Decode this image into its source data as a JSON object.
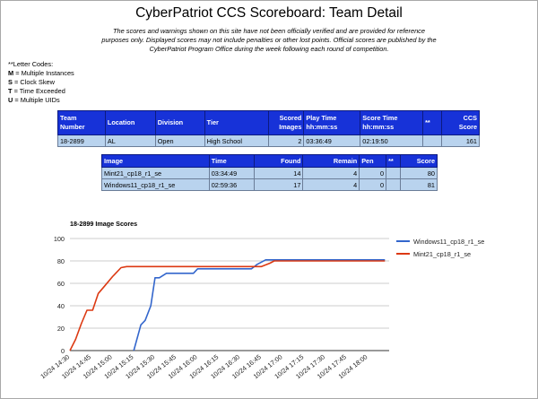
{
  "header": {
    "title": "CyberPatriot CCS Scoreboard: Team Detail",
    "disclaimer": "The scores and warnings shown on this site have not been officially verified and are provided for reference purposes only. Displayed scores may not include penalties or other lost points. Official scores are published by the CyberPatriot Program Office during the week following each round of competition."
  },
  "letter_codes": {
    "heading": "**Letter Codes:",
    "items": [
      {
        "code": "M",
        "label": " = Multiple Instances"
      },
      {
        "code": "S",
        "label": " = Clock Skew"
      },
      {
        "code": "T",
        "label": " = Time Exceeded"
      },
      {
        "code": "U",
        "label": " = Multiple UIDs"
      }
    ]
  },
  "team_table": {
    "headers": [
      "Team Number",
      "Location",
      "Division",
      "Tier",
      "Scored Images",
      "Play Time hh:mm:ss",
      "Score Time hh:mm:ss",
      "**",
      "CCS Score"
    ],
    "row": [
      "18-2899",
      "AL",
      "Open",
      "High School",
      "2",
      "03:36:49",
      "02:19:50",
      "",
      "161"
    ]
  },
  "image_table": {
    "headers": [
      "Image",
      "Time",
      "Found",
      "Remain",
      "Pen",
      "**",
      "Score"
    ],
    "rows": [
      [
        "Mint21_cp18_r1_se",
        "03:34:49",
        "14",
        "4",
        "0",
        "",
        "80"
      ],
      [
        "Windows11_cp18_r1_se",
        "02:59:36",
        "17",
        "4",
        "0",
        "",
        "81"
      ]
    ]
  },
  "chart_data": {
    "type": "line",
    "title": "18-2899 Image Scores",
    "xlabel": "",
    "ylabel": "",
    "ylim": [
      0,
      100
    ],
    "yticks": [
      0,
      20,
      40,
      60,
      80,
      100
    ],
    "xlim": [
      "14:30",
      "18:15"
    ],
    "xticks": [
      "10/24 14:30",
      "10/24 14:45",
      "10/24 15:00",
      "10/24 15:15",
      "10/24 15:30",
      "10/24 15:45",
      "10/24 16:00",
      "10/24 16:15",
      "10/24 16:30",
      "10/24 16:45",
      "10/24 17:00",
      "10/24 17:15",
      "10/24 17:30",
      "10/24 17:45",
      "10/24 18:00"
    ],
    "grid": true,
    "legend_position": "right",
    "series": [
      {
        "name": "Windows11_cp18_r1_se",
        "color": "#3366cc",
        "points": [
          [
            "15:15",
            0
          ],
          [
            "15:20",
            23
          ],
          [
            "15:23",
            27
          ],
          [
            "15:27",
            40
          ],
          [
            "15:30",
            65
          ],
          [
            "15:33",
            65
          ],
          [
            "15:38",
            69
          ],
          [
            "15:57",
            69
          ],
          [
            "16:00",
            73
          ],
          [
            "16:38",
            73
          ],
          [
            "16:42",
            77
          ],
          [
            "16:48",
            81
          ],
          [
            "18:12",
            81
          ]
        ]
      },
      {
        "name": "Mint21_cp18_r1_se",
        "color": "#dc3912",
        "points": [
          [
            "14:30",
            0
          ],
          [
            "14:34",
            10
          ],
          [
            "14:38",
            24
          ],
          [
            "14:42",
            36
          ],
          [
            "14:46",
            36
          ],
          [
            "14:50",
            51
          ],
          [
            "14:54",
            57
          ],
          [
            "15:00",
            66
          ],
          [
            "15:06",
            74
          ],
          [
            "15:10",
            75
          ],
          [
            "16:45",
            75
          ],
          [
            "16:51",
            78
          ],
          [
            "16:54",
            80
          ],
          [
            "18:12",
            80
          ]
        ]
      }
    ]
  }
}
